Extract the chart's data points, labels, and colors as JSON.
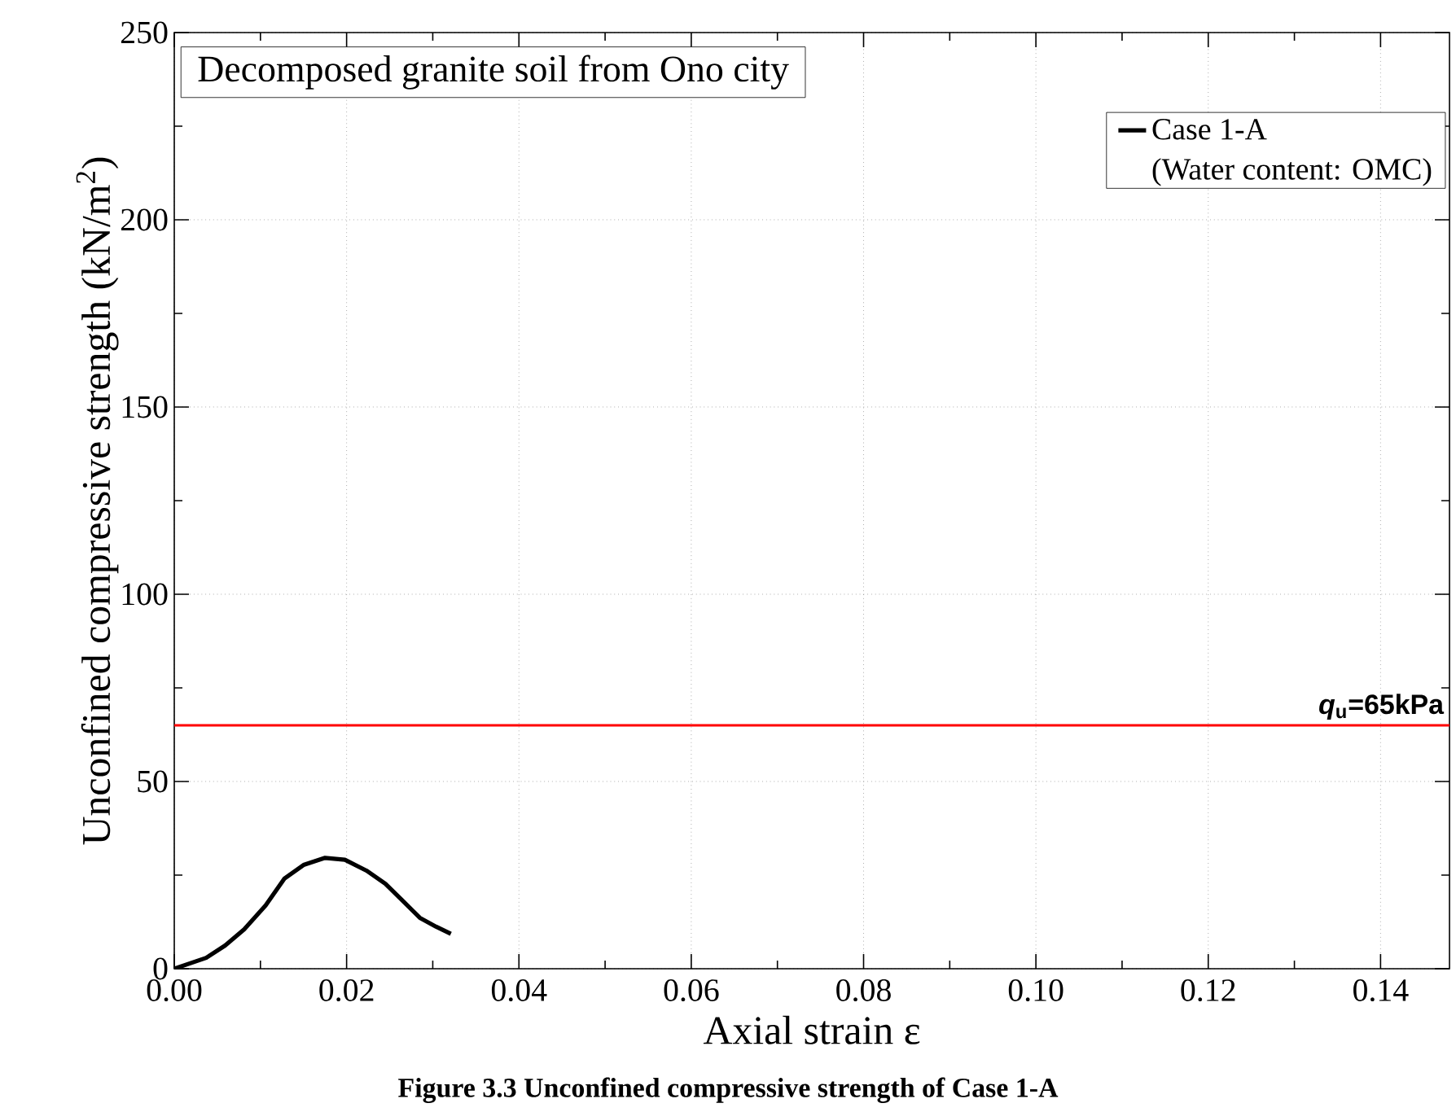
{
  "chart_data": {
    "type": "line",
    "title": "Decomposed granite soil from Ono city",
    "xlabel": "Axial strain ε",
    "ylabel": "Unconfined compressive strength (kN/m$^{2}$)",
    "series": [
      {
        "name": "Case 1-A",
        "color": "#000000",
        "x": [
          0,
          0.0037,
          0.0059,
          0.0081,
          0.0106,
          0.0128,
          0.015,
          0.0175,
          0.0198,
          0.0223,
          0.0245,
          0.0264,
          0.0285,
          0.0304,
          0.0321
        ],
        "values": [
          0,
          2.9,
          6.2,
          10.5,
          16.9,
          24.1,
          27.7,
          29.6,
          29.1,
          26.2,
          22.7,
          18.4,
          13.6,
          11.2,
          9.3
        ]
      }
    ],
    "xlim": [
      0,
      0.148
    ],
    "ylim": [
      0,
      250
    ],
    "xticks": [
      {
        "value": 0,
        "label": "0.00"
      },
      {
        "value": 0.02,
        "label": "0.02"
      },
      {
        "value": 0.04,
        "label": "0.04"
      },
      {
        "value": 0.06,
        "label": "0.06"
      },
      {
        "value": 0.08,
        "label": "0.08"
      },
      {
        "value": 0.1,
        "label": "0.10"
      },
      {
        "value": 0.12,
        "label": "0.12"
      },
      {
        "value": 0.14,
        "label": "0.14"
      }
    ],
    "yticks": [
      0,
      50,
      100,
      150,
      200,
      250
    ],
    "ref_lines": [
      {
        "axis": "y",
        "value": 65,
        "label": "*q*$_{u}$=65kPa",
        "color": "#ff0000"
      }
    ],
    "annotations": [
      "(Water content: OMC)",
      "Figure 3.3 Unconfined compressive strength of Case 1-A"
    ],
    "grid": true,
    "legend": "top right",
    "line_style": "solid",
    "marker": "none"
  }
}
